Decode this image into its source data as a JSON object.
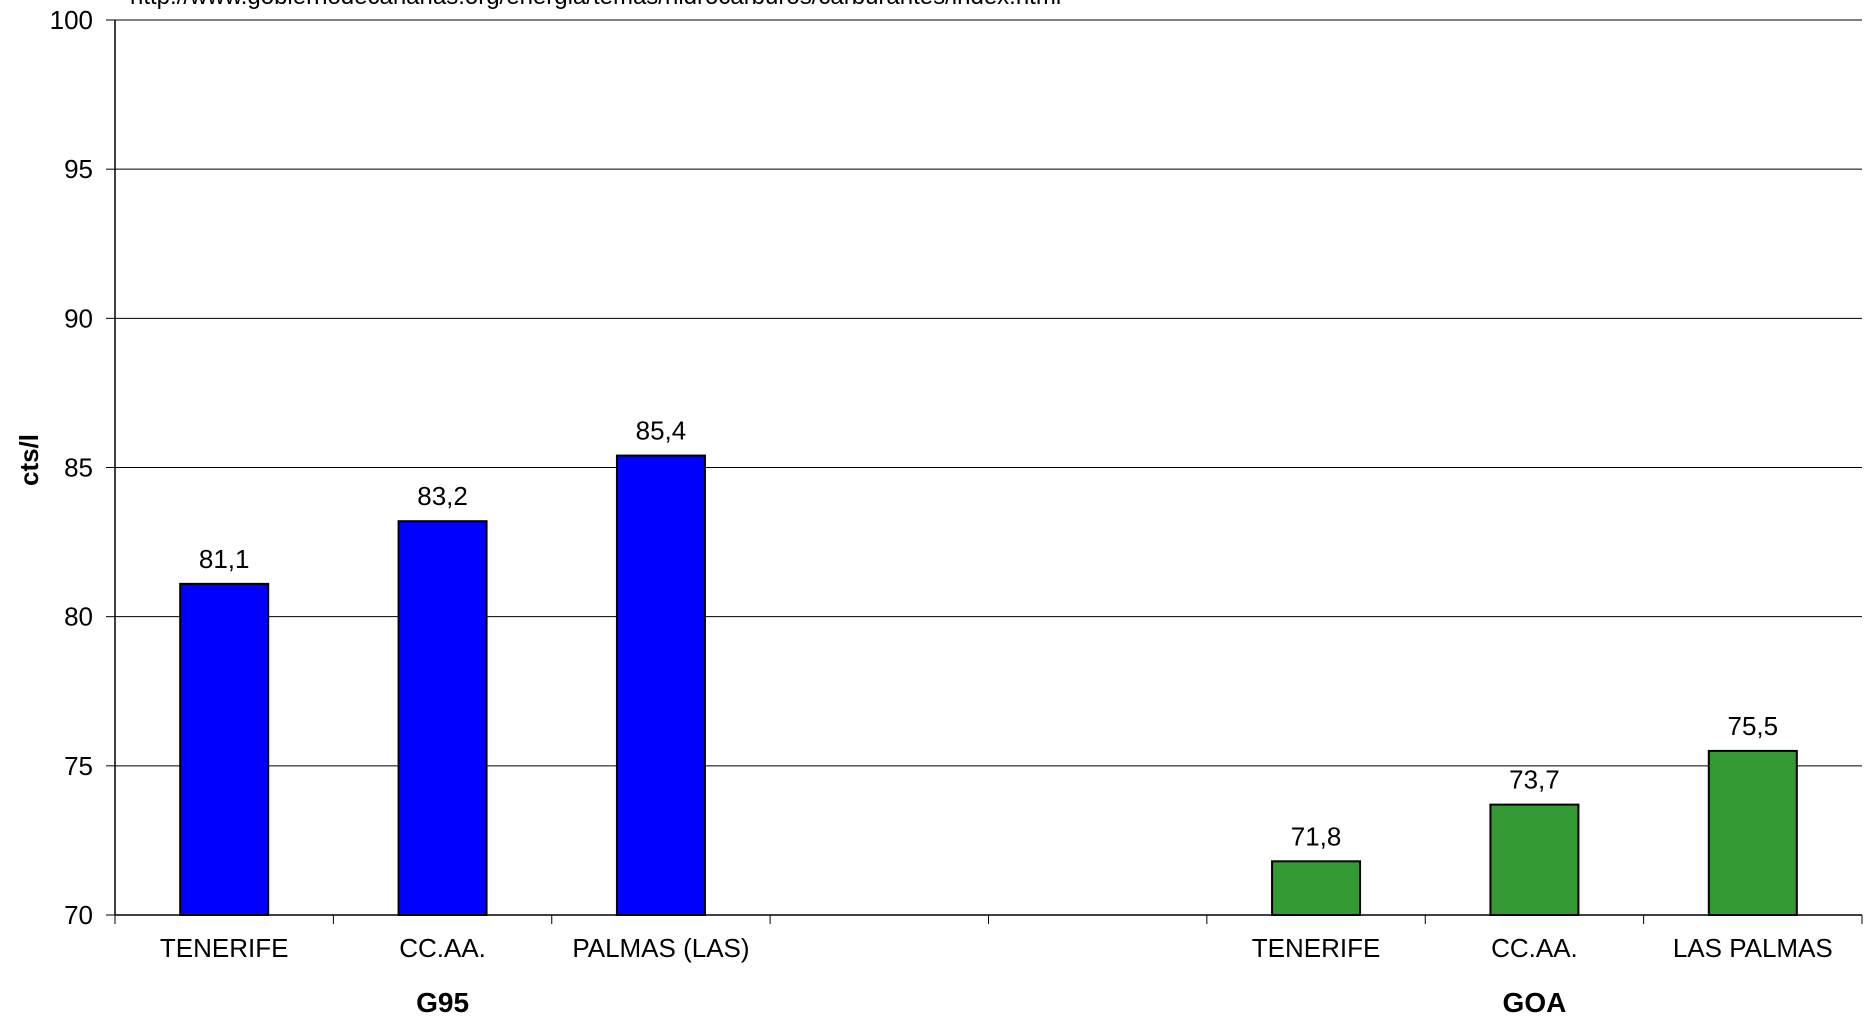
{
  "chart_data": {
    "type": "bar",
    "title": "",
    "source_text": "http://www.gobiernodecanarias.org/energia/temas/hidrocarburos/carburantes/index.html",
    "ylabel": "cts/l",
    "xlabel": "",
    "ylim": [
      70,
      100
    ],
    "yticks": [
      70,
      75,
      80,
      85,
      90,
      95,
      100
    ],
    "grid": true,
    "legend": "none",
    "slots": 8,
    "groups": [
      {
        "label": "G95",
        "start_slot": 0,
        "span": 3
      },
      {
        "label": "GOA",
        "start_slot": 5,
        "span": 3
      }
    ],
    "bars": [
      {
        "slot": 0,
        "category": "TENERIFE",
        "value": 81.1,
        "label": "81,1",
        "color": "#0000ff"
      },
      {
        "slot": 1,
        "category": "CC.AA.",
        "value": 83.2,
        "label": "83,2",
        "color": "#0000ff"
      },
      {
        "slot": 2,
        "category": "PALMAS (LAS)",
        "value": 85.4,
        "label": "85,4",
        "color": "#0000ff"
      },
      {
        "slot": 5,
        "category": "TENERIFE",
        "value": 71.8,
        "label": "71,8",
        "color": "#339933"
      },
      {
        "slot": 6,
        "category": "CC.AA.",
        "value": 73.7,
        "label": "73,7",
        "color": "#339933"
      },
      {
        "slot": 7,
        "category": "LAS PALMAS",
        "value": 75.5,
        "label": "75,5",
        "color": "#339933"
      }
    ]
  }
}
